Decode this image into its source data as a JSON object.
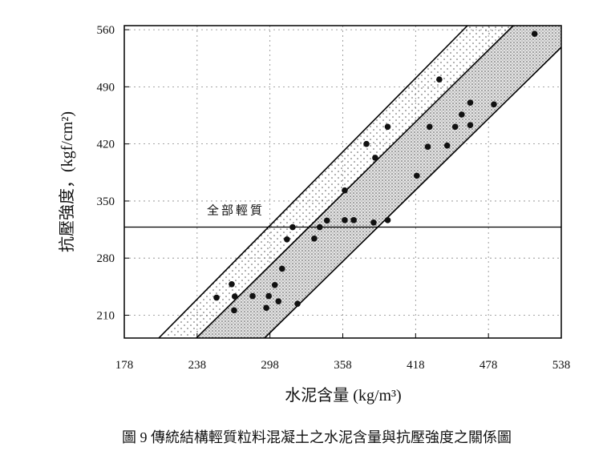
{
  "chart_data": {
    "type": "scatter",
    "ylabel": "抗壓強度，(kgf/cm²)",
    "xlabel": "水泥含量 (kg/m³)",
    "caption": "圖 9 傳統結構輕質粒料混凝土之水泥含量與抗壓強度之關係圖",
    "annotation": "全部輕質",
    "xlim": [
      178,
      538
    ],
    "xticks": [
      178,
      238,
      298,
      358,
      418,
      478,
      538
    ],
    "ylim": [
      182,
      565
    ],
    "yticks": [
      210,
      280,
      350,
      420,
      490,
      560
    ],
    "grid": true,
    "hline": 318,
    "band_lines": [
      {
        "x": [
          206.4,
          460.7
        ],
        "y": [
          182,
          565
        ]
      },
      {
        "x": [
          237.4,
          498.4
        ],
        "y": [
          182,
          565
        ]
      },
      {
        "x": [
          293.6,
          538
        ],
        "y": [
          182,
          538.5
        ]
      }
    ],
    "x": [
      254,
      266.5,
      269,
      268.5,
      283.7,
      297,
      302,
      305,
      295,
      320.7,
      308,
      312,
      316.7,
      334.5,
      339,
      345,
      359.6,
      367,
      383.4,
      395,
      359.6,
      377.5,
      384.7,
      395,
      419,
      428,
      429.5,
      437.5,
      444,
      450.6,
      456,
      463,
      463,
      482.5,
      516
    ],
    "y": [
      231.5,
      248,
      233,
      216,
      233.5,
      233.5,
      247,
      227,
      219,
      224,
      267,
      303,
      318,
      304,
      318,
      326,
      326.5,
      326.5,
      323.6,
      326.5,
      363,
      420,
      403,
      441,
      381,
      416.5,
      441,
      499,
      418,
      441,
      456,
      443,
      470.5,
      468.5,
      555
    ],
    "color": "#111111"
  }
}
